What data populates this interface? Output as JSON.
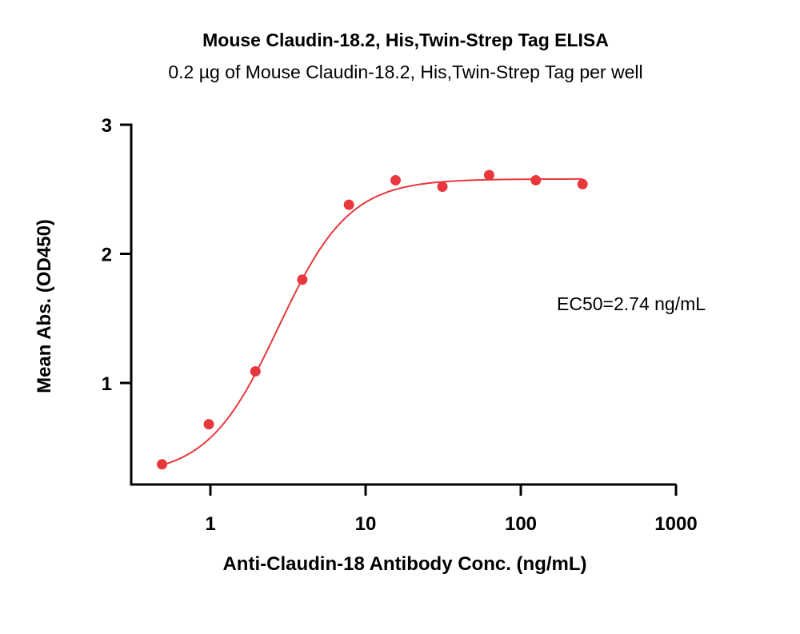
{
  "chart_data": {
    "type": "scatter",
    "title": "Mouse Claudin-18.2, His,Twin-Strep Tag ELISA",
    "subtitle": "0.2 µg of Mouse Claudin-18.2, His,Twin-Strep Tag per well",
    "xlabel": "Anti-Claudin-18 Antibody Conc. (ng/mL)",
    "ylabel": "Mean Abs. (OD450)",
    "x_scale": "log",
    "xlim": [
      0.4,
      1000
    ],
    "ylim": [
      0.1,
      3
    ],
    "x_ticks": [
      {
        "value": 1,
        "label": "1"
      },
      {
        "value": 10,
        "label": "10"
      },
      {
        "value": 100,
        "label": "100"
      },
      {
        "value": 1000,
        "label": "1000"
      }
    ],
    "y_ticks": [
      {
        "value": 1,
        "label": "1"
      },
      {
        "value": 2,
        "label": "2"
      },
      {
        "value": 3,
        "label": "3"
      }
    ],
    "grid": false,
    "series": [
      {
        "color": "#e8383d",
        "points": [
          {
            "x": 0.488,
            "y": 0.37
          },
          {
            "x": 0.977,
            "y": 0.68
          },
          {
            "x": 1.95,
            "y": 1.09
          },
          {
            "x": 3.91,
            "y": 1.8
          },
          {
            "x": 7.81,
            "y": 2.38
          },
          {
            "x": 15.6,
            "y": 2.57
          },
          {
            "x": 31.25,
            "y": 2.52
          },
          {
            "x": 62.5,
            "y": 2.61
          },
          {
            "x": 125,
            "y": 2.57
          },
          {
            "x": 250,
            "y": 2.54
          }
        ]
      }
    ],
    "annotations": [
      {
        "text": "EC50=2.74 ng/mL"
      }
    ],
    "colors": {
      "data": "#e8383d",
      "axis": "#000000"
    }
  }
}
